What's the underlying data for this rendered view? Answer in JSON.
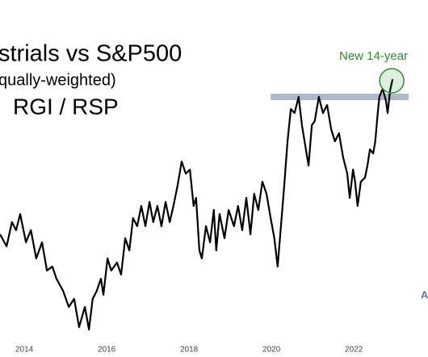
{
  "chart_data": {
    "type": "line",
    "title": "strials vs S&P500",
    "subtitle": "qually-weighted)",
    "ratio_label": "RGI / RSP",
    "annotation": "New 14-year",
    "watermark": "A",
    "x": [
      2013.41,
      2013.57,
      2013.7,
      2013.8,
      2013.9,
      2014.04,
      2014.16,
      2014.29,
      2014.43,
      2014.55,
      2014.68,
      2014.78,
      2014.94,
      2015.08,
      2015.21,
      2015.33,
      2015.47,
      2015.57,
      2015.66,
      2015.76,
      2015.86,
      2015.92,
      2016.02,
      2016.11,
      2016.25,
      2016.35,
      2016.45,
      2016.55,
      2016.64,
      2016.74,
      2016.84,
      2016.94,
      2017.04,
      2017.13,
      2017.23,
      2017.33,
      2017.43,
      2017.53,
      2017.62,
      2017.72,
      2017.82,
      2017.92,
      2018.02,
      2018.11,
      2018.17,
      2018.25,
      2018.31,
      2018.41,
      2018.51,
      2018.6,
      2018.66,
      2018.74,
      2018.86,
      2018.96,
      2019.09,
      2019.19,
      2019.29,
      2019.39,
      2019.49,
      2019.58,
      2019.68,
      2019.78,
      2019.88,
      2019.98,
      2020.07,
      2020.15,
      2020.23,
      2020.31,
      2020.39,
      2020.47,
      2020.56,
      2020.66,
      2020.74,
      2020.82,
      2020.9,
      2020.98,
      2021.05,
      2021.15,
      2021.25,
      2021.35,
      2021.45,
      2021.54,
      2021.64,
      2021.74,
      2021.84,
      2021.9,
      2021.98,
      2022.03,
      2022.09,
      2022.17,
      2022.27,
      2022.33,
      2022.39,
      2022.47,
      2022.52,
      2022.58,
      2022.62,
      2022.7,
      2022.78,
      2022.82,
      2022.88,
      2022.94
    ],
    "series": [
      {
        "color": "#000000",
        "values": [
          150,
          135,
          165,
          155,
          175,
          140,
          155,
          120,
          140,
          105,
          110,
          95,
          80,
          60,
          70,
          35,
          60,
          32,
          70,
          80,
          95,
          75,
          120,
          105,
          115,
          100,
          145,
          130,
          170,
          160,
          185,
          160,
          190,
          165,
          185,
          160,
          190,
          165,
          185,
          210,
          240,
          225,
          230,
          185,
          195,
          130,
          120,
          160,
          140,
          180,
          130,
          175,
          145,
          180,
          160,
          185,
          155,
          195,
          150,
          200,
          180,
          215,
          200,
          170,
          145,
          110,
          160,
          210,
          265,
          305,
          300,
          320,
          285,
          260,
          235,
          285,
          290,
          320,
          300,
          310,
          280,
          265,
          275,
          245,
          225,
          195,
          230,
          215,
          185,
          215,
          220,
          235,
          255,
          250,
          265,
          300,
          320,
          330,
          315,
          300,
          328,
          342
        ]
      }
    ],
    "reference_line": {
      "value": 320,
      "x": [
        2019.98,
        2023.33
      ],
      "color": "#b0b8c8"
    },
    "annotation_color": "#2e8b2e",
    "xlim": [
      2013.41,
      2023.8
    ],
    "xticks": [
      2014,
      2016,
      2018,
      2020,
      2022
    ],
    "ylim": [
      0,
      350
    ]
  }
}
